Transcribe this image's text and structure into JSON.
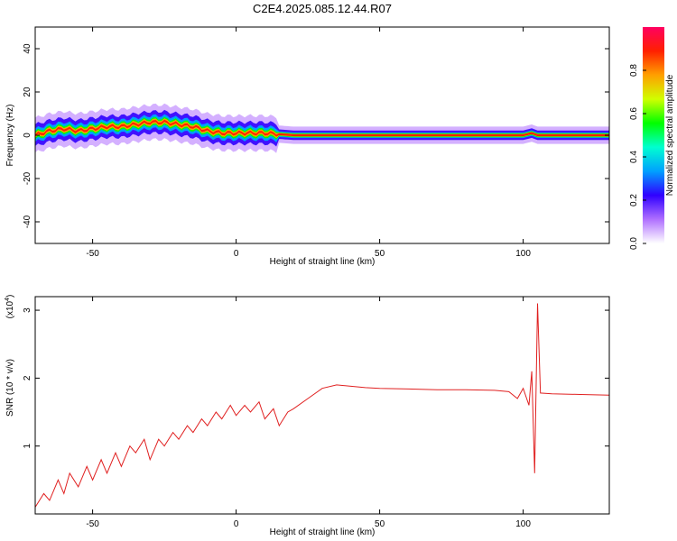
{
  "title": "C2E4.2025.085.12.44.R07",
  "chart_data": [
    {
      "type": "heatmap",
      "xlabel": "Height of straight line (km)",
      "ylabel": "Frequency (Hz)",
      "xlim": [
        -70,
        130
      ],
      "ylim": [
        -50,
        50
      ],
      "xticks": [
        -50,
        0,
        50,
        100
      ],
      "yticks": [
        -40,
        -20,
        0,
        20,
        40
      ],
      "ridge": {
        "x": [
          -70,
          -65,
          -60,
          -55,
          -50,
          -45,
          -40,
          -35,
          -30,
          -25,
          -20,
          -15,
          -10,
          -5,
          0,
          5,
          10,
          15,
          20,
          30,
          40,
          60,
          80,
          100,
          103,
          105,
          110,
          120,
          130
        ],
        "freq": [
          0,
          2,
          3,
          2,
          3,
          4,
          4,
          5,
          6,
          6,
          5,
          4,
          2,
          1,
          1,
          1,
          1,
          0.5,
          0,
          0,
          0,
          0,
          0,
          0,
          1,
          0,
          0,
          0,
          0
        ]
      },
      "colorbar": {
        "label": "Normalized spectral amplitude",
        "range": [
          0,
          1
        ],
        "ticks": [
          "0.0",
          "0.2",
          "0.4",
          "0.6",
          "0.8"
        ],
        "colors": [
          "#ffffff",
          "#b070ff",
          "#3000ff",
          "#00a0ff",
          "#00ffd0",
          "#00ff00",
          "#d0ff00",
          "#ffa000",
          "#ff2000",
          "#ff0060"
        ]
      }
    },
    {
      "type": "line",
      "xlabel": "Height of straight line (km)",
      "ylabel": "SNR (10 * v/v)",
      "y_multiplier": "(x10",
      "y_multiplier_exp": "4",
      "xlim": [
        -70,
        130
      ],
      "ylim": [
        0,
        3.2
      ],
      "xticks": [
        -50,
        0,
        50,
        100
      ],
      "yticks": [
        1,
        2,
        3
      ],
      "series": [
        {
          "color": "#e02020",
          "x": [
            -70,
            -67,
            -65,
            -62,
            -60,
            -58,
            -55,
            -52,
            -50,
            -47,
            -45,
            -42,
            -40,
            -37,
            -35,
            -32,
            -30,
            -27,
            -25,
            -22,
            -20,
            -17,
            -15,
            -12,
            -10,
            -7,
            -5,
            -2,
            0,
            3,
            5,
            8,
            10,
            13,
            15,
            18,
            20,
            25,
            30,
            35,
            40,
            45,
            50,
            60,
            70,
            80,
            90,
            95,
            98,
            100,
            102,
            103,
            104,
            105,
            106,
            110,
            120,
            130
          ],
          "y": [
            0.1,
            0.3,
            0.2,
            0.5,
            0.3,
            0.6,
            0.4,
            0.7,
            0.5,
            0.8,
            0.6,
            0.9,
            0.7,
            1.0,
            0.9,
            1.1,
            0.8,
            1.1,
            1.0,
            1.2,
            1.1,
            1.3,
            1.2,
            1.4,
            1.3,
            1.5,
            1.4,
            1.6,
            1.45,
            1.6,
            1.5,
            1.65,
            1.4,
            1.55,
            1.3,
            1.5,
            1.55,
            1.7,
            1.85,
            1.9,
            1.88,
            1.86,
            1.85,
            1.84,
            1.83,
            1.83,
            1.82,
            1.8,
            1.7,
            1.85,
            1.6,
            2.1,
            0.6,
            3.1,
            1.78,
            1.77,
            1.76,
            1.75
          ]
        }
      ]
    }
  ]
}
